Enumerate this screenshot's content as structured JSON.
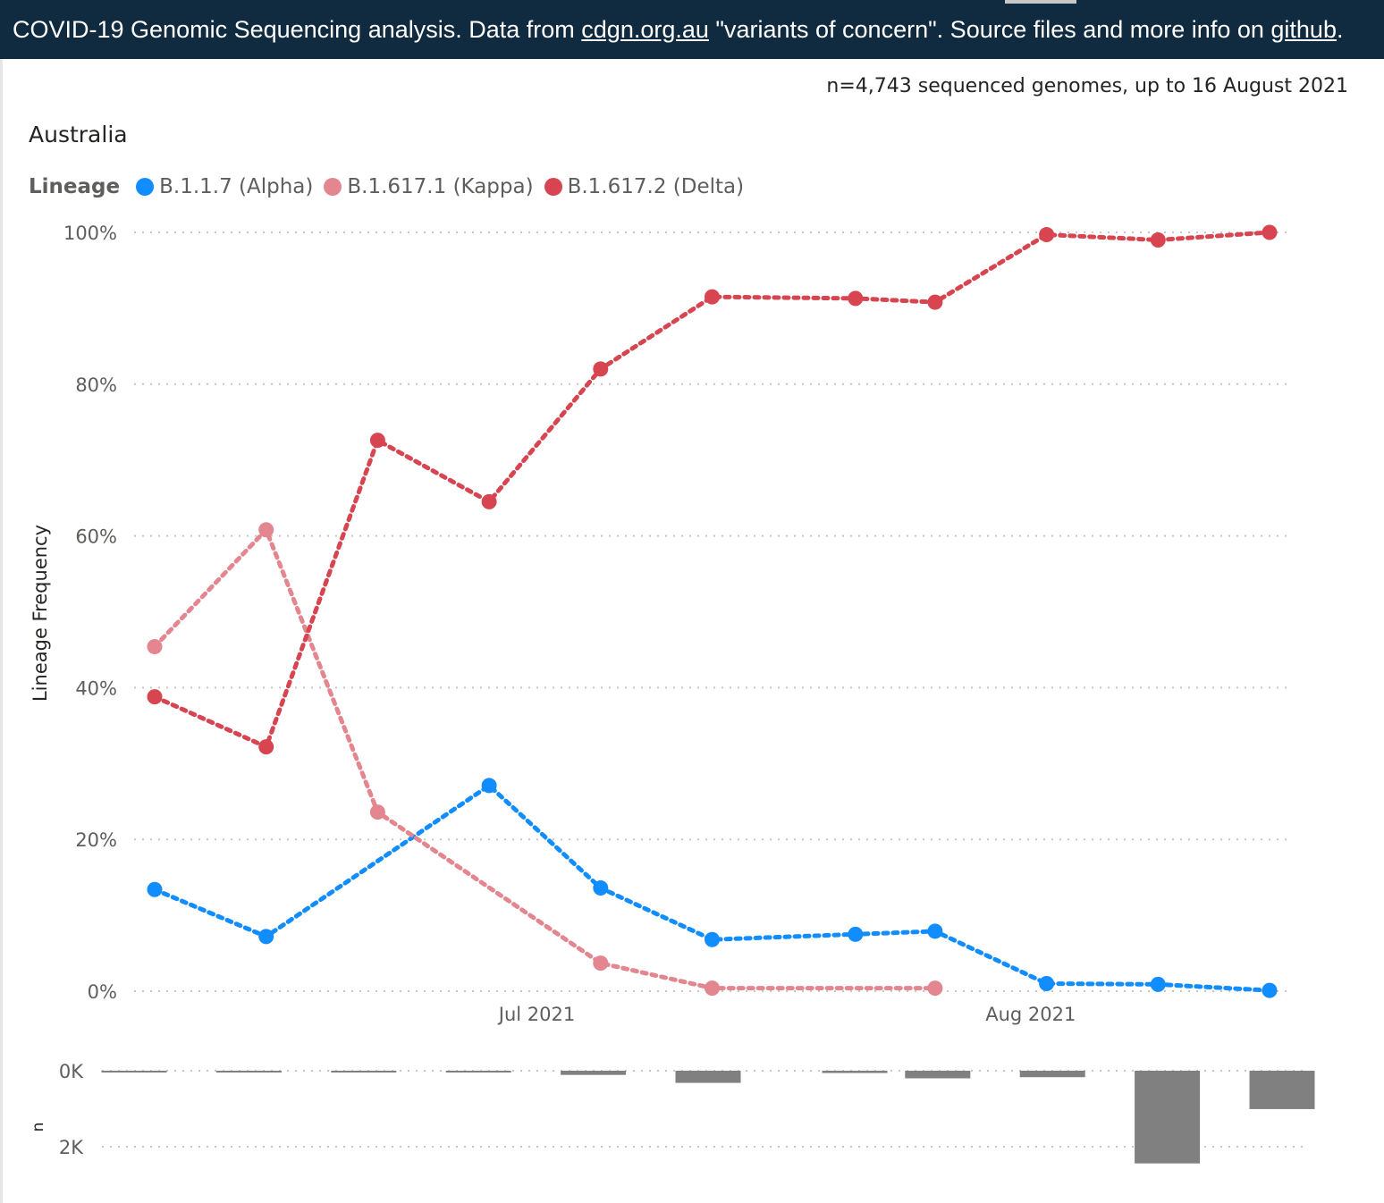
{
  "header": {
    "text_1": "COVID-19 Genomic Sequencing analysis. Data from ",
    "link_1": "cdgn.org.au",
    "text_2": " \"variants of concern\". Source files and more info on ",
    "link_2": "github",
    "text_3": "."
  },
  "subtitle": "n=4,743 sequenced genomes, up to 16 August 2021",
  "chart_data": [
    {
      "type": "line",
      "title": "Australia",
      "legend_title": "Lineage",
      "legend_position": "top-left",
      "ylabel": "Lineage Frequency",
      "ylim": [
        0,
        100
      ],
      "y_ticks": [
        "0%",
        "20%",
        "40%",
        "60%",
        "80%",
        "100%"
      ],
      "x_ticks": [
        "Jul 2021",
        "Aug 2021"
      ],
      "x_dates": [
        "2021-06-07",
        "2021-06-14",
        "2021-06-21",
        "2021-06-28",
        "2021-07-05",
        "2021-07-12",
        "2021-07-21",
        "2021-07-26",
        "2021-08-02",
        "2021-08-09",
        "2021-08-16"
      ],
      "grid": true,
      "series": [
        {
          "name": "B.1.1.7 (Alpha)",
          "color": "#118dff",
          "values": [
            13.4,
            7.2,
            null,
            27.1,
            13.6,
            6.8,
            7.5,
            7.9,
            1.0,
            0.9,
            0.1
          ]
        },
        {
          "name": "B.1.617.1 (Kappa)",
          "color": "#e3868f",
          "values": [
            45.4,
            60.8,
            23.6,
            null,
            3.7,
            0.4,
            null,
            0.4,
            null,
            null,
            null
          ]
        },
        {
          "name": "B.1.617.2 (Delta)",
          "color": "#d64550",
          "values": [
            38.8,
            32.2,
            72.6,
            64.5,
            82.0,
            91.5,
            91.3,
            90.8,
            99.7,
            99.0,
            100.0
          ]
        }
      ]
    },
    {
      "type": "bar",
      "ylabel": "n",
      "y_ticks": [
        "0K",
        "2K"
      ],
      "color": "#808080",
      "orientation": "downward",
      "x_dates": [
        "2021-06-07",
        "2021-06-14",
        "2021-06-21",
        "2021-06-28",
        "2021-07-05",
        "2021-07-12",
        "2021-07-21",
        "2021-07-26",
        "2021-08-02",
        "2021-08-09",
        "2021-08-16"
      ],
      "values": [
        45,
        30,
        40,
        45,
        110,
        320,
        60,
        200,
        170,
        2440,
        1010
      ]
    }
  ]
}
